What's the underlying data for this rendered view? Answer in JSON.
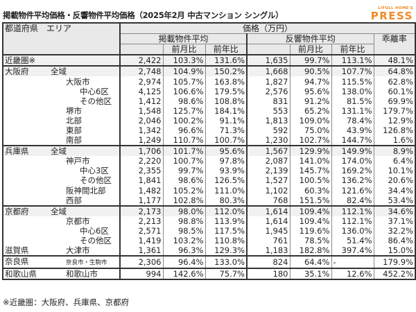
{
  "title": "掲載物件平均価格・反響物件平均価格（2025年2月 中古マンション シングル）",
  "logo": {
    "top": "LIFULL HOME'S",
    "main": "PRESS",
    "color": "#f08a24"
  },
  "header": {
    "area": "都道府県　エリア",
    "price": "価格（万円）",
    "listed": "掲載物件平均",
    "response": "反響物件平均",
    "gap": "乖離率",
    "mom": "前月比",
    "yoy": "前年比"
  },
  "rows": [
    {
      "pref": "近畿圏※",
      "area": "",
      "lvl": 0,
      "v": [
        "2,422",
        "103.3%",
        "131.6%",
        "1,635",
        "99.7%",
        "113.1%",
        "48.1%"
      ]
    },
    {
      "pref": "大阪府",
      "area": "全域",
      "lvl": 1,
      "v": [
        "2,748",
        "104.9%",
        "150.2%",
        "1,668",
        "90.5%",
        "107.7%",
        "64.8%"
      ]
    },
    {
      "pref": "",
      "area": "大阪市",
      "lvl": 2,
      "v": [
        "2,974",
        "105.7%",
        "163.8%",
        "1,827",
        "94.7%",
        "115.5%",
        "62.8%"
      ]
    },
    {
      "pref": "",
      "area": "中心6区",
      "lvl": 3,
      "v": [
        "4,125",
        "106.6%",
        "179.5%",
        "2,576",
        "95.6%",
        "138.0%",
        "60.1%"
      ]
    },
    {
      "pref": "",
      "area": "その他区",
      "lvl": 3,
      "v": [
        "1,412",
        "98.6%",
        "108.8%",
        "831",
        "91.2%",
        "81.5%",
        "69.9%"
      ]
    },
    {
      "pref": "",
      "area": "堺市",
      "lvl": 2,
      "v": [
        "1,548",
        "125.7%",
        "184.1%",
        "553",
        "65.2%",
        "131.1%",
        "179.7%"
      ]
    },
    {
      "pref": "",
      "area": "北部",
      "lvl": 2,
      "v": [
        "2,046",
        "100.2%",
        "91.1%",
        "1,813",
        "109.0%",
        "78.4%",
        "12.9%"
      ]
    },
    {
      "pref": "",
      "area": "東部",
      "lvl": 2,
      "v": [
        "1,342",
        "96.6%",
        "71.3%",
        "592",
        "75.0%",
        "43.9%",
        "126.8%"
      ]
    },
    {
      "pref": "",
      "area": "南部",
      "lvl": 2,
      "v": [
        "1,249",
        "110.7%",
        "100.7%",
        "1,230",
        "102.7%",
        "144.7%",
        "1.6%"
      ]
    },
    {
      "pref": "兵庫県",
      "area": "全域",
      "lvl": 1,
      "v": [
        "1,706",
        "101.7%",
        "95.6%",
        "1,567",
        "129.9%",
        "149.9%",
        "8.9%"
      ]
    },
    {
      "pref": "",
      "area": "神戸市",
      "lvl": 2,
      "v": [
        "2,220",
        "100.7%",
        "97.8%",
        "2,087",
        "141.0%",
        "174.0%",
        "6.4%"
      ]
    },
    {
      "pref": "",
      "area": "中心3区",
      "lvl": 3,
      "v": [
        "2,355",
        "99.7%",
        "93.9%",
        "2,139",
        "145.7%",
        "169.2%",
        "10.1%"
      ]
    },
    {
      "pref": "",
      "area": "その他区",
      "lvl": 3,
      "v": [
        "1,841",
        "98.6%",
        "126.5%",
        "1,527",
        "100.5%",
        "136.2%",
        "20.6%"
      ]
    },
    {
      "pref": "",
      "area": "阪神間北部",
      "lvl": 2,
      "v": [
        "1,482",
        "105.2%",
        "111.0%",
        "1,102",
        "60.3%",
        "121.6%",
        "34.4%"
      ]
    },
    {
      "pref": "",
      "area": "西部",
      "lvl": 2,
      "v": [
        "1,177",
        "102.8%",
        "80.3%",
        "768",
        "151.5%",
        "82.4%",
        "53.4%"
      ]
    },
    {
      "pref": "京都府",
      "area": "全域",
      "lvl": 1,
      "v": [
        "2,173",
        "98.0%",
        "112.0%",
        "1,614",
        "109.4%",
        "112.1%",
        "34.6%"
      ]
    },
    {
      "pref": "",
      "area": "京都市",
      "lvl": 2,
      "v": [
        "2,213",
        "98.8%",
        "113.9%",
        "1,614",
        "109.4%",
        "112.1%",
        "37.1%"
      ]
    },
    {
      "pref": "",
      "area": "中心6区",
      "lvl": 3,
      "v": [
        "2,571",
        "98.5%",
        "117.5%",
        "1,945",
        "119.6%",
        "136.0%",
        "32.2%"
      ]
    },
    {
      "pref": "",
      "area": "その他区",
      "lvl": 3,
      "v": [
        "1,419",
        "103.2%",
        "110.8%",
        "761",
        "78.5%",
        "51.4%",
        "86.4%"
      ]
    },
    {
      "pref": "滋賀県",
      "area": "大津市",
      "lvl": 2,
      "v": [
        "1,361",
        "96.3%",
        "129.3%",
        "1,183",
        "182.8%",
        "397.4%",
        "15.0%"
      ]
    },
    {
      "pref": "奈良県",
      "area": "奈良市・生駒市",
      "lvl": 2,
      "small": true,
      "v": [
        "2,306",
        "96.4%",
        "133.0%",
        "824",
        "64.4%",
        "-",
        "179.9%"
      ]
    },
    {
      "pref": "和歌山県",
      "area": "和歌山市",
      "lvl": 2,
      "v": [
        "994",
        "142.6%",
        "75.7%",
        "180",
        "35.1%",
        "12.6%",
        "452.2%"
      ]
    }
  ],
  "note": "※近畿圏：大阪府、兵庫県、京都府"
}
